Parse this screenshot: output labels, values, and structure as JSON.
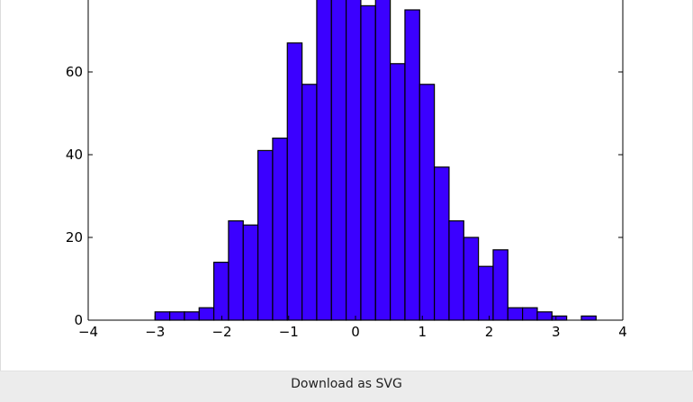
{
  "chart_data": {
    "type": "bar",
    "bin_edges": [
      -3.0,
      -2.78,
      -2.56,
      -2.34,
      -2.12,
      -1.9,
      -1.68,
      -1.46,
      -1.24,
      -1.02,
      -0.8,
      -0.58,
      -0.36,
      -0.14,
      0.08,
      0.3,
      0.52,
      0.74,
      0.96,
      1.18,
      1.4,
      1.62,
      1.84,
      2.06,
      2.28,
      2.5,
      2.72,
      2.94,
      3.16,
      3.38,
      3.6
    ],
    "values": [
      2,
      2,
      2,
      3,
      14,
      24,
      23,
      41,
      44,
      67,
      57,
      79,
      78,
      79,
      76,
      79,
      62,
      75,
      57,
      37,
      24,
      20,
      13,
      17,
      3,
      3,
      2,
      1,
      0,
      1
    ],
    "xlim": [
      -4,
      4
    ],
    "ylim": [
      0,
      80
    ],
    "x_ticks": [
      -4,
      -3,
      -2,
      -1,
      0,
      1,
      2,
      3,
      4
    ],
    "x_tick_labels": [
      "−4",
      "−3",
      "−2",
      "−1",
      "0",
      "1",
      "2",
      "3",
      "4"
    ],
    "y_ticks": [
      0,
      20,
      40,
      60
    ],
    "y_tick_labels": [
      "0",
      "20",
      "40",
      "60"
    ],
    "bar_color": "#3b00ff",
    "edge_color": "#000000",
    "title": "",
    "xlabel": "",
    "ylabel": ""
  },
  "footer": {
    "download_label": "Download as SVG"
  }
}
